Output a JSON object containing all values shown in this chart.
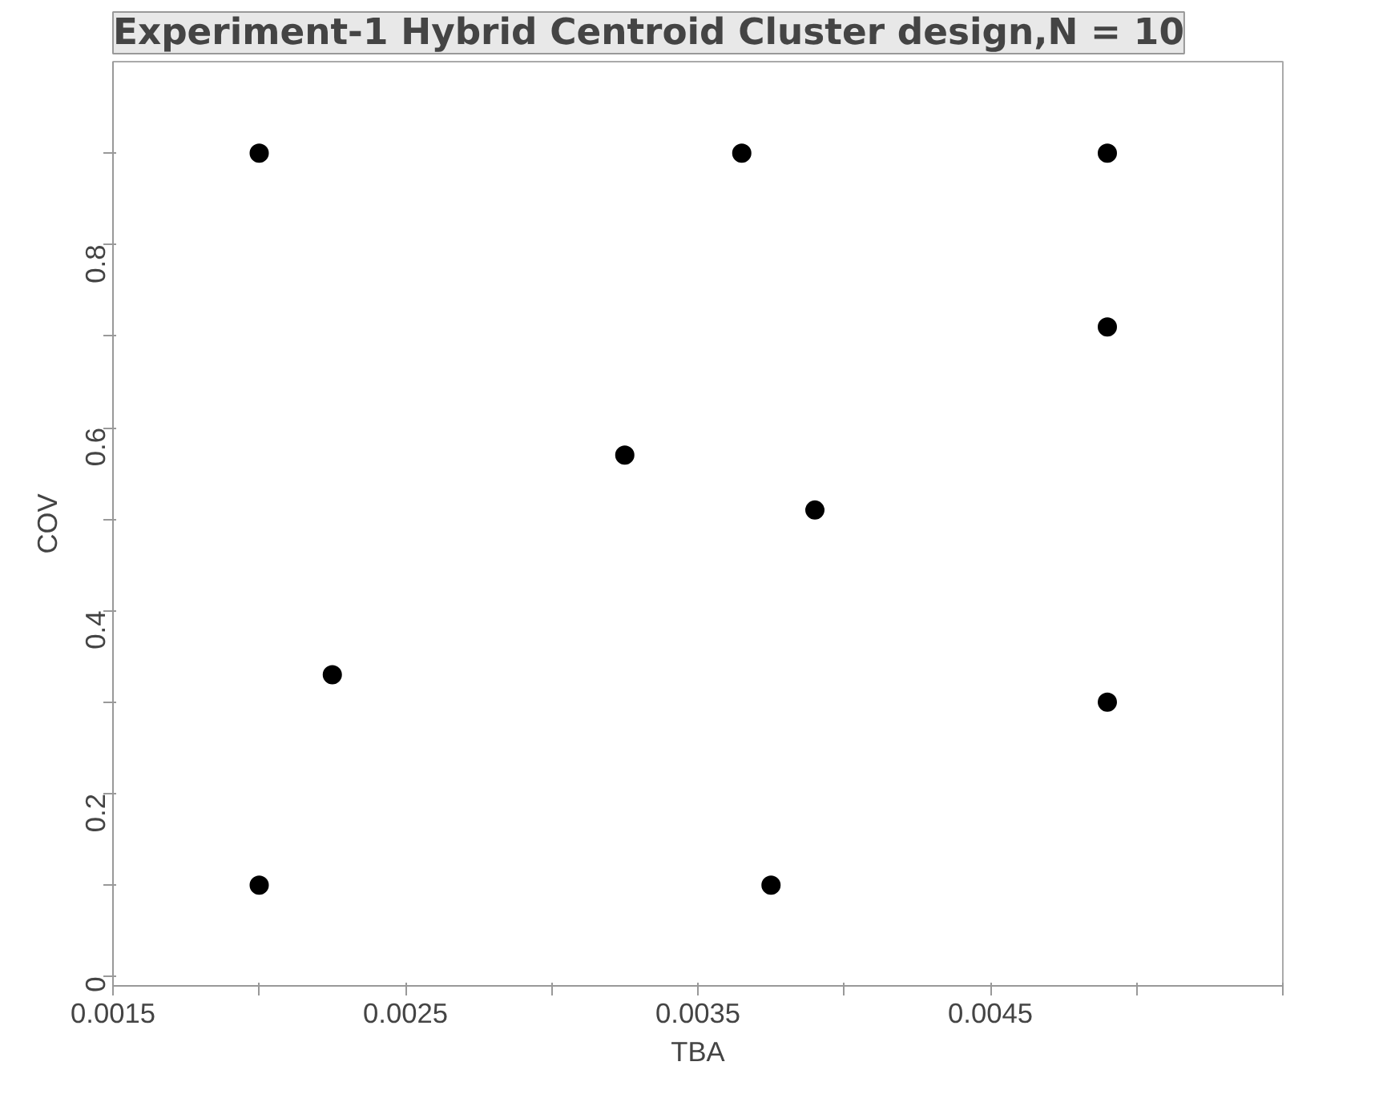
{
  "chart_data": {
    "type": "scatter",
    "title": "Experiment-1 Hybrid Centroid Cluster design,N = 10",
    "xlabel": "TBA",
    "ylabel": "COV",
    "marker": "circle",
    "x": [
      0.002,
      0.00365,
      0.0049,
      0.0049,
      0.00325,
      0.0039,
      0.00225,
      0.0049,
      0.002,
      0.00375
    ],
    "series": [
      {
        "color": "#000000",
        "values": [
          0.9,
          0.9,
          0.9,
          0.71,
          0.57,
          0.51,
          0.33,
          0.3,
          0.1,
          0.1
        ]
      }
    ],
    "xlim": [
      0.0015,
      0.0055
    ],
    "ylim": [
      -0.01,
      1.0
    ],
    "xticks": [
      {
        "value": 0.0015,
        "label": "0.0015"
      },
      {
        "value": 0.002,
        "label": null
      },
      {
        "value": 0.0025,
        "label": "0.0025"
      },
      {
        "value": 0.003,
        "label": null
      },
      {
        "value": 0.0035,
        "label": "0.0035"
      },
      {
        "value": 0.004,
        "label": null
      },
      {
        "value": 0.0045,
        "label": "0.0045"
      },
      {
        "value": 0.005,
        "label": null
      },
      {
        "value": 0.0055,
        "label": null
      }
    ],
    "yticks": [
      0,
      {
        "value": 0.1,
        "label": null
      },
      0.2,
      {
        "value": 0.3,
        "label": null
      },
      0.4,
      {
        "value": 0.5,
        "label": null
      },
      0.6,
      {
        "value": 0.7,
        "label": null
      },
      0.8,
      {
        "value": 0.9,
        "label": null
      }
    ]
  }
}
